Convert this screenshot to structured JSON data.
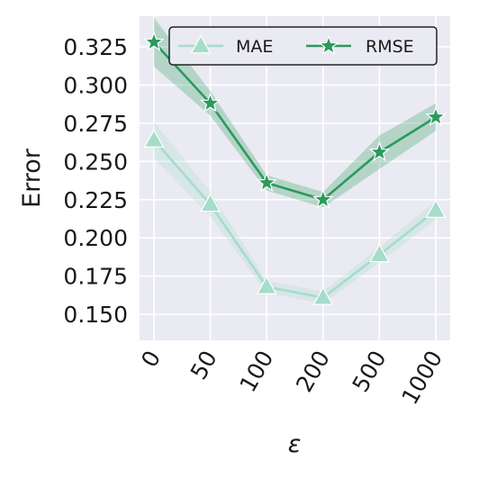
{
  "chart_data": {
    "type": "line",
    "categories": [
      "0",
      "50",
      "100",
      "200",
      "500",
      "1000"
    ],
    "xlabel": "ε",
    "ylabel": "Error",
    "ylim": [
      0.133,
      0.345
    ],
    "yticks": [
      0.15,
      0.175,
      0.2,
      0.225,
      0.25,
      0.275,
      0.3,
      0.325
    ],
    "ytick_labels": [
      "0.150",
      "0.175",
      "0.200",
      "0.225",
      "0.250",
      "0.275",
      "0.300",
      "0.325"
    ],
    "grid": true,
    "legend_position": "top-right",
    "background": "#eaeaf2",
    "series": [
      {
        "name": "MAE",
        "marker": "triangle",
        "color": "#a6dcca",
        "values": [
          0.264,
          0.222,
          0.168,
          0.161,
          0.189,
          0.218
        ],
        "lower": [
          0.252,
          0.214,
          0.164,
          0.157,
          0.184,
          0.212
        ],
        "upper": [
          0.276,
          0.23,
          0.172,
          0.165,
          0.194,
          0.224
        ]
      },
      {
        "name": "RMSE",
        "marker": "star",
        "color": "#2b9a5d",
        "values": [
          0.328,
          0.288,
          0.236,
          0.225,
          0.256,
          0.279
        ],
        "lower": [
          0.312,
          0.28,
          0.231,
          0.22,
          0.245,
          0.27
        ],
        "upper": [
          0.344,
          0.296,
          0.241,
          0.23,
          0.267,
          0.288
        ]
      }
    ]
  }
}
